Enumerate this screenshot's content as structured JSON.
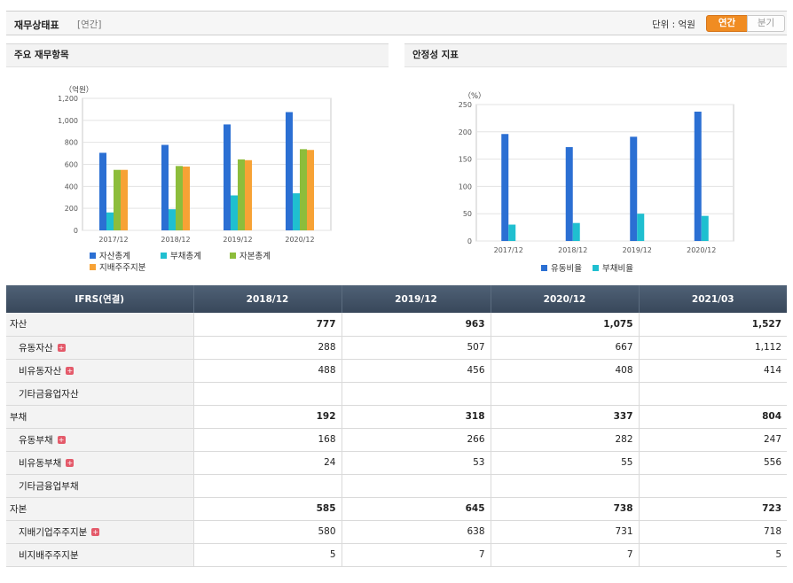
{
  "header": {
    "title": "재무상태표",
    "subtitle": "[연간]",
    "unit_label": "단위 : 억원",
    "period_on": "연간",
    "period_off": "분기"
  },
  "panels": {
    "left_title": "주요 재무항목",
    "right_title": "안정성 지표"
  },
  "chart_data": [
    {
      "type": "bar",
      "ylabel": "（억원）",
      "ylim": [
        0,
        1200
      ],
      "yticks": [
        "0",
        "200",
        "400",
        "600",
        "800",
        "1,000",
        "1,200"
      ],
      "categories": [
        "2017/12",
        "2018/12",
        "2019/12",
        "2020/12"
      ],
      "series": [
        {
          "name": "자산총계",
          "color": "#2b6fd3",
          "values": [
            705,
            777,
            963,
            1075
          ]
        },
        {
          "name": "부채총계",
          "color": "#1fbfd0",
          "values": [
            163,
            192,
            318,
            337
          ]
        },
        {
          "name": "자본총계",
          "color": "#8dbd3b",
          "values": [
            550,
            585,
            645,
            738
          ]
        },
        {
          "name": "지배주주지분",
          "color": "#f7a235",
          "values": [
            550,
            580,
            638,
            731
          ]
        }
      ]
    },
    {
      "type": "bar",
      "ylabel": "（%）",
      "ylim": [
        0,
        250
      ],
      "yticks": [
        "0",
        "50",
        "100",
        "150",
        "200",
        "250"
      ],
      "categories": [
        "2017/12",
        "2018/12",
        "2019/12",
        "2020/12"
      ],
      "series": [
        {
          "name": "유동비율",
          "color": "#2b6fd3",
          "values": [
            196,
            172,
            191,
            237
          ]
        },
        {
          "name": "부채비율",
          "color": "#1fbfd0",
          "values": [
            30,
            33,
            50,
            46
          ]
        }
      ]
    }
  ],
  "table": {
    "headers": [
      "IFRS(연결)",
      "2018/12",
      "2019/12",
      "2020/12",
      "2021/03"
    ],
    "rows": [
      {
        "label": "자산",
        "level": "top",
        "plus": false,
        "values": [
          "777",
          "963",
          "1,075",
          "1,527"
        ]
      },
      {
        "label": "유동자산",
        "level": "sub",
        "plus": true,
        "values": [
          "288",
          "507",
          "667",
          "1,112"
        ]
      },
      {
        "label": "비유동자산",
        "level": "sub",
        "plus": true,
        "values": [
          "488",
          "456",
          "408",
          "414"
        ]
      },
      {
        "label": "기타금융업자산",
        "level": "sub",
        "plus": false,
        "values": [
          "",
          "",
          "",
          ""
        ]
      },
      {
        "label": "부채",
        "level": "top",
        "plus": false,
        "values": [
          "192",
          "318",
          "337",
          "804"
        ]
      },
      {
        "label": "유동부채",
        "level": "sub",
        "plus": true,
        "values": [
          "168",
          "266",
          "282",
          "247"
        ]
      },
      {
        "label": "비유동부채",
        "level": "sub",
        "plus": true,
        "values": [
          "24",
          "53",
          "55",
          "556"
        ]
      },
      {
        "label": "기타금융업부채",
        "level": "sub",
        "plus": false,
        "values": [
          "",
          "",
          "",
          ""
        ]
      },
      {
        "label": "자본",
        "level": "top",
        "plus": false,
        "values": [
          "585",
          "645",
          "738",
          "723"
        ]
      },
      {
        "label": "지배기업주주지분",
        "level": "sub",
        "plus": true,
        "values": [
          "580",
          "638",
          "731",
          "718"
        ]
      },
      {
        "label": "비지배주주지분",
        "level": "sub",
        "plus": false,
        "values": [
          "5",
          "7",
          "7",
          "5"
        ]
      }
    ]
  },
  "icons": {
    "expand": "plus-icon"
  }
}
